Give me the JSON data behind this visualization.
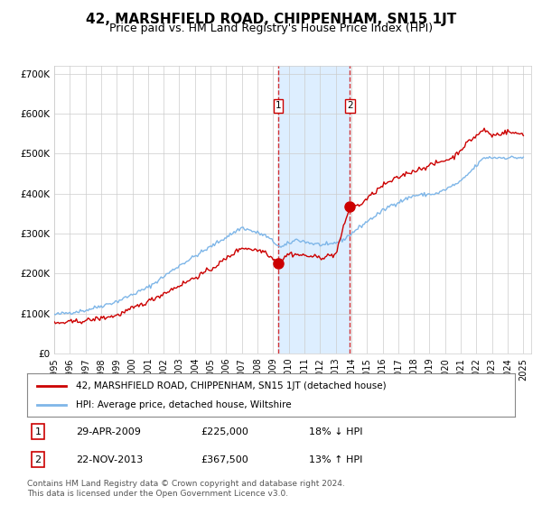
{
  "title": "42, MARSHFIELD ROAD, CHIPPENHAM, SN15 1JT",
  "subtitle": "Price paid vs. HM Land Registry's House Price Index (HPI)",
  "title_fontsize": 11,
  "subtitle_fontsize": 9,
  "ylabel_ticks": [
    "£0",
    "£100K",
    "£200K",
    "£300K",
    "£400K",
    "£500K",
    "£600K",
    "£700K"
  ],
  "ytick_vals": [
    0,
    100000,
    200000,
    300000,
    400000,
    500000,
    600000,
    700000
  ],
  "ylim": [
    0,
    720000
  ],
  "xlim_start": 1995.0,
  "xlim_end": 2025.5,
  "purchase1_date": 2009.32,
  "purchase1_price": 225000,
  "purchase1_label": "1",
  "purchase2_date": 2013.9,
  "purchase2_price": 367500,
  "purchase2_label": "2",
  "hpi_color": "#7EB6E8",
  "price_color": "#CC0000",
  "shade_color": "#DDEEFF",
  "grid_color": "#CCCCCC",
  "legend1_text": "42, MARSHFIELD ROAD, CHIPPENHAM, SN15 1JT (detached house)",
  "legend2_text": "HPI: Average price, detached house, Wiltshire",
  "table_row1": [
    "1",
    "29-APR-2009",
    "£225,000",
    "18% ↓ HPI"
  ],
  "table_row2": [
    "2",
    "22-NOV-2013",
    "£367,500",
    "13% ↑ HPI"
  ],
  "footer": "Contains HM Land Registry data © Crown copyright and database right 2024.\nThis data is licensed under the Open Government Licence v3.0.",
  "xtick_years": [
    1995,
    1996,
    1997,
    1998,
    1999,
    2000,
    2001,
    2002,
    2003,
    2004,
    2005,
    2006,
    2007,
    2008,
    2009,
    2010,
    2011,
    2012,
    2013,
    2014,
    2015,
    2016,
    2017,
    2018,
    2019,
    2020,
    2021,
    2022,
    2023,
    2024,
    2025
  ]
}
